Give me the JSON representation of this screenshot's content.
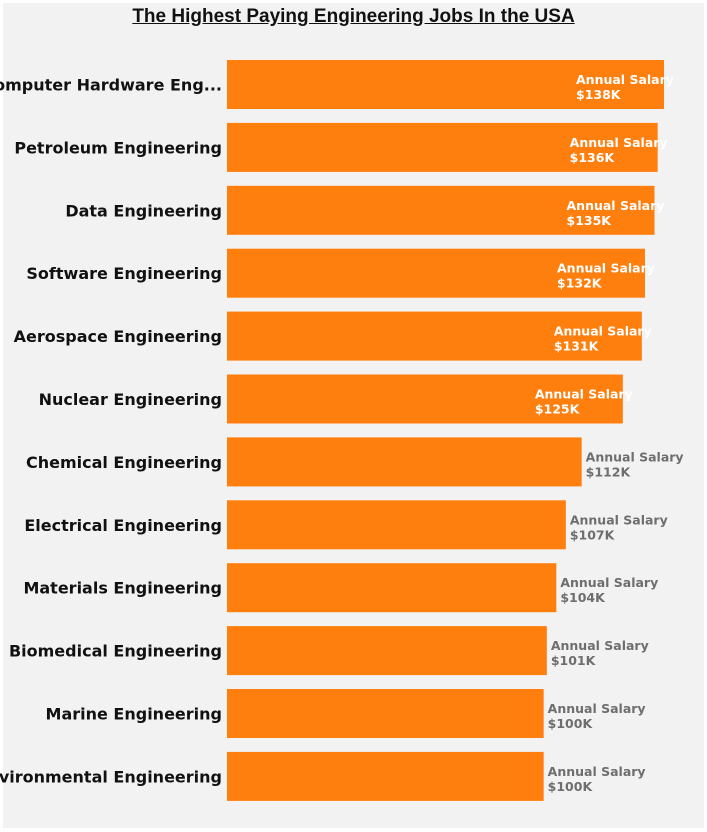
{
  "chart_data": {
    "type": "bar",
    "orientation": "horizontal",
    "title": "The Highest Paying Engineering Jobs In the USA",
    "categories": [
      "Computer Hardware Eng...",
      "Petroleum Engineering",
      "Data Engineering",
      "Software Engineering",
      "Aerospace Engineering",
      "Nuclear Engineering",
      "Chemical Engineering",
      "Electrical Engineering",
      "Materials Engineering",
      "Biomedical Engineering",
      "Marine Engineering",
      "Environmental Engineering"
    ],
    "values": [
      138,
      136,
      135,
      132,
      131,
      125,
      112,
      107,
      104,
      101,
      100,
      100
    ],
    "value_labels": [
      "$138K",
      "$136K",
      "$135K",
      "$132K",
      "$131K",
      "$125K",
      "$112K",
      "$107K",
      "$104K",
      "$101K",
      "$100K",
      "$100K"
    ],
    "data_label_prefix": "Annual Salary",
    "unit": "$K",
    "xlim": [
      0,
      140
    ],
    "grid": false,
    "bar_color": "#ff7f0e",
    "label_color_inside": "#ffffff",
    "label_color_outside": "#6e6e6e",
    "background": "#f2f2f2"
  }
}
